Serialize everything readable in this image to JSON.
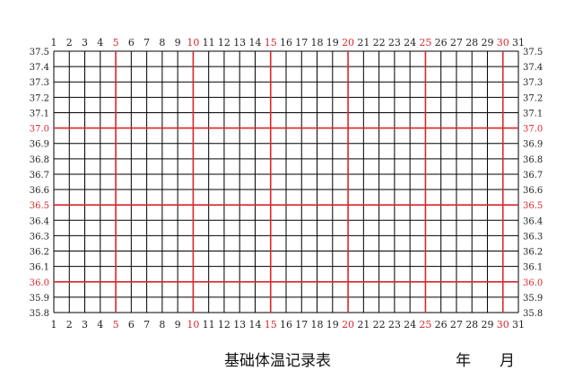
{
  "title": "基础体温记录表",
  "year_label": "年",
  "month_label": "月",
  "colors": {
    "grid": "#000000",
    "highlight": "#d9262c",
    "text": "#222222"
  },
  "chart_data": {
    "type": "line",
    "title": "基础体温记录表",
    "xlabel": "",
    "ylabel": "",
    "x_ticks": [
      1,
      2,
      3,
      4,
      5,
      6,
      7,
      8,
      9,
      10,
      11,
      12,
      13,
      14,
      15,
      16,
      17,
      18,
      19,
      20,
      21,
      22,
      23,
      24,
      25,
      26,
      27,
      28,
      29,
      30,
      31
    ],
    "x_highlight_ticks": [
      5,
      10,
      15,
      20,
      25,
      30
    ],
    "y_ticks": [
      "37.5",
      "37.4",
      "37.3",
      "37.2",
      "37.1",
      "37.0",
      "36.9",
      "36.8",
      "36.7",
      "36.6",
      "36.5",
      "36.4",
      "36.3",
      "36.2",
      "36.1",
      "36.0",
      "35.9",
      "35.8"
    ],
    "y_highlight_ticks": [
      "37.0",
      "36.5",
      "36.0"
    ],
    "xlim": [
      1,
      31
    ],
    "ylim": [
      35.8,
      37.5
    ],
    "grid": true,
    "series": []
  }
}
